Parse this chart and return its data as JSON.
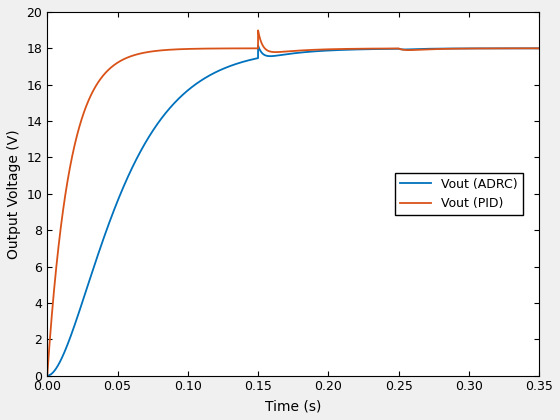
{
  "xlabel": "Time (s)",
  "ylabel": "Output Voltage (V)",
  "xlim": [
    0,
    0.35
  ],
  "ylim": [
    0,
    20
  ],
  "xticks": [
    0,
    0.05,
    0.1,
    0.15,
    0.2,
    0.25,
    0.3,
    0.35
  ],
  "yticks": [
    0,
    2,
    4,
    6,
    8,
    10,
    12,
    14,
    16,
    18,
    20
  ],
  "adrc_color": "#0072BD",
  "pid_color": "#D95319",
  "linewidth": 1.3,
  "legend_labels": [
    "Vout (ADRC)",
    "Vout (PID)"
  ],
  "background_color": "#f0f0f0",
  "axes_color": "#ffffff",
  "grid_color": "#ffffff",
  "steady_state": 18.0
}
